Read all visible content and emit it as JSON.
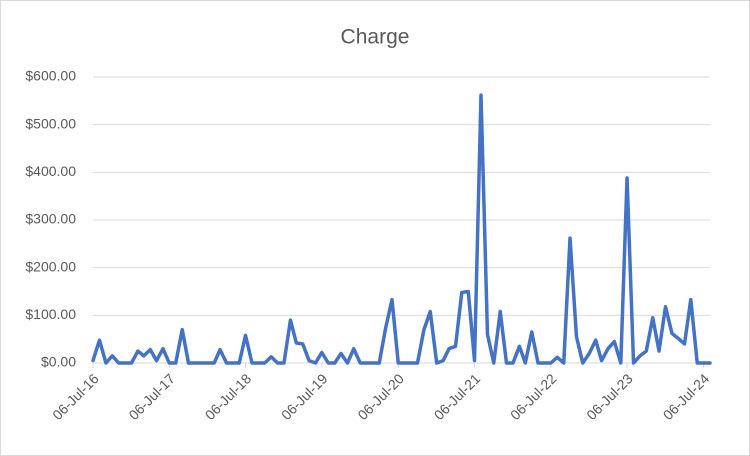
{
  "chart_data": {
    "type": "line",
    "title": "Charge",
    "x": [
      "2016-07-06",
      "2016-08-06",
      "2016-09-06",
      "2016-10-06",
      "2016-11-06",
      "2016-12-06",
      "2017-01-06",
      "2017-02-06",
      "2017-03-06",
      "2017-04-06",
      "2017-05-06",
      "2017-06-06",
      "2017-07-06",
      "2017-08-06",
      "2017-09-06",
      "2017-10-06",
      "2017-11-06",
      "2017-12-06",
      "2018-01-06",
      "2018-02-06",
      "2018-03-06",
      "2018-04-06",
      "2018-05-06",
      "2018-06-06",
      "2018-07-06",
      "2018-08-06",
      "2018-09-06",
      "2018-10-06",
      "2018-11-06",
      "2018-12-06",
      "2019-01-06",
      "2019-02-06",
      "2019-03-06",
      "2019-04-06",
      "2019-05-06",
      "2019-06-06",
      "2019-07-06",
      "2019-08-06",
      "2019-09-06",
      "2019-10-06",
      "2019-11-06",
      "2019-12-06",
      "2020-01-06",
      "2020-02-06",
      "2020-03-06",
      "2020-04-06",
      "2020-05-06",
      "2020-06-06",
      "2020-07-06",
      "2020-08-06",
      "2020-09-06",
      "2020-10-06",
      "2020-11-06",
      "2020-12-06",
      "2021-01-06",
      "2021-02-06",
      "2021-03-06",
      "2021-04-06",
      "2021-05-06",
      "2021-06-06",
      "2021-07-06",
      "2021-08-06",
      "2021-09-06",
      "2021-10-06",
      "2021-11-06",
      "2021-12-06",
      "2022-01-06",
      "2022-02-06",
      "2022-03-06",
      "2022-04-06",
      "2022-05-06",
      "2022-06-06",
      "2022-07-06",
      "2022-08-06",
      "2022-09-06",
      "2022-10-06",
      "2022-11-06",
      "2022-12-06",
      "2023-01-06",
      "2023-02-06",
      "2023-03-06",
      "2023-04-06",
      "2023-05-06",
      "2023-06-06",
      "2023-07-06",
      "2023-08-06",
      "2023-09-06",
      "2023-10-06",
      "2023-11-06",
      "2023-12-06",
      "2024-01-06",
      "2024-02-06",
      "2024-03-06",
      "2024-04-06",
      "2024-05-06",
      "2024-06-06",
      "2024-07-06",
      "2024-08-06"
    ],
    "values": [
      5,
      48,
      0,
      15,
      0,
      0,
      0,
      25,
      15,
      28,
      5,
      30,
      0,
      0,
      70,
      0,
      0,
      0,
      0,
      0,
      28,
      0,
      0,
      0,
      58,
      0,
      0,
      0,
      13,
      0,
      0,
      90,
      42,
      40,
      5,
      0,
      22,
      0,
      0,
      20,
      0,
      30,
      0,
      0,
      0,
      0,
      72,
      133,
      0,
      0,
      0,
      0,
      70,
      108,
      0,
      5,
      30,
      35,
      148,
      150,
      5,
      562,
      60,
      0,
      108,
      0,
      0,
      35,
      0,
      65,
      0,
      0,
      0,
      12,
      0,
      262,
      55,
      0,
      20,
      48,
      5,
      30,
      45,
      0,
      388,
      0,
      15,
      25,
      95,
      25,
      118,
      62,
      52,
      40,
      133,
      0,
      0,
      0
    ],
    "color": "#4472c4",
    "xlim": [
      "2016-07-06",
      "2024-08-06"
    ],
    "xticks": [
      {
        "value": "2016-07-06",
        "label": "06-Jul-16"
      },
      {
        "value": "2017-07-06",
        "label": "06-Jul-17"
      },
      {
        "value": "2018-07-06",
        "label": "06-Jul-18"
      },
      {
        "value": "2019-07-06",
        "label": "06-Jul-19"
      },
      {
        "value": "2020-07-06",
        "label": "06-Jul-20"
      },
      {
        "value": "2021-07-06",
        "label": "06-Jul-21"
      },
      {
        "value": "2022-07-06",
        "label": "06-Jul-22"
      },
      {
        "value": "2023-07-06",
        "label": "06-Jul-23"
      },
      {
        "value": "2024-07-06",
        "label": "06-Jul-24"
      }
    ],
    "ylim": [
      0,
      600
    ],
    "yticks": [
      {
        "value": 0,
        "label": "$0.00"
      },
      {
        "value": 100,
        "label": "$100.00"
      },
      {
        "value": 200,
        "label": "$200.00"
      },
      {
        "value": 300,
        "label": "$300.00"
      },
      {
        "value": 400,
        "label": "$400.00"
      },
      {
        "value": 500,
        "label": "$500.00"
      },
      {
        "value": 600,
        "label": "$600.00"
      }
    ],
    "grid": true
  }
}
